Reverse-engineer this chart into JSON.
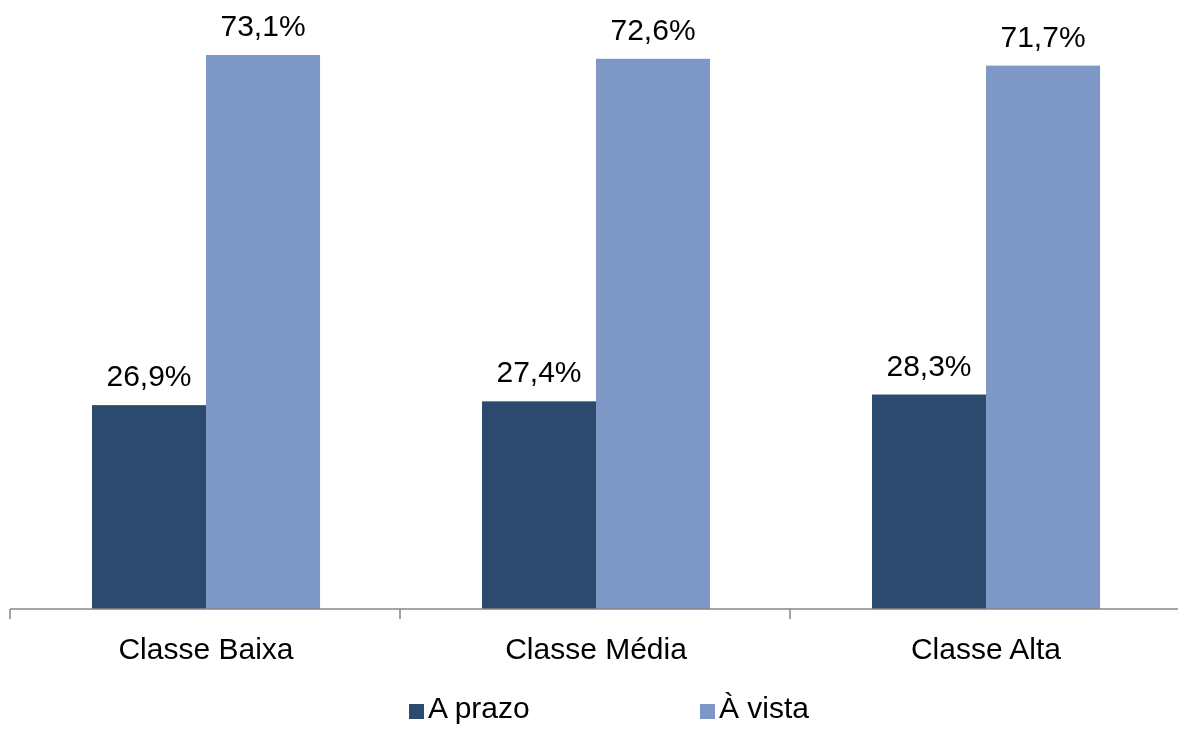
{
  "chart_data": {
    "type": "bar",
    "categories": [
      "Classe Baixa",
      "Classe Média",
      "Classe Alta"
    ],
    "series": [
      {
        "name": "A prazo",
        "color": "#2c4a6e",
        "values": [
          26.9,
          27.4,
          28.3
        ],
        "value_labels": [
          "26,9%",
          "27,4%",
          "28,3%"
        ]
      },
      {
        "name": "À vista",
        "color": "#7d98c6",
        "values": [
          73.1,
          72.6,
          71.7
        ],
        "value_labels": [
          "73,1%",
          "72,6%",
          "71,7%"
        ]
      }
    ],
    "legend": "bottom"
  }
}
